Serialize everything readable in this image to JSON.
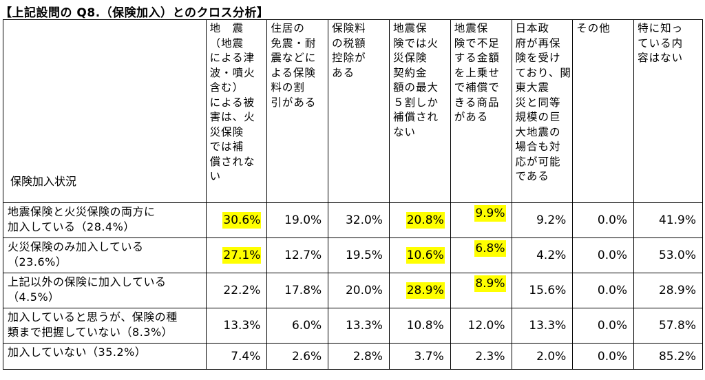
{
  "title": "【上記設問の Q8.（保険加入）とのクロス分析】",
  "corner_label": "保険加入状況",
  "columns": [
    [
      "地　震",
      "（地震",
      "による津",
      "波・噴火",
      "含む）",
      "による被",
      "害は、火",
      "災保険",
      "では補",
      "償されな",
      "い"
    ],
    [
      "住居の",
      "免震・耐",
      "震などに",
      "よる保険",
      "料の割",
      "引がある"
    ],
    [
      "保険料",
      "の税額",
      "控除が",
      "ある"
    ],
    [
      "地震保",
      "険では火",
      "災保険",
      "契約金",
      "額の最大",
      "５割しか",
      "補償され",
      "ない"
    ],
    [
      "地震保",
      "険で不足",
      "する金額",
      "を上乗せ",
      "で補償で",
      "きる商品",
      "がある"
    ],
    [
      "日本政",
      "府が再保",
      "険を受け",
      "ており、関",
      "東大震",
      "災と同等",
      "規模の巨",
      "大地震の",
      "場合も対",
      "応が可能",
      "である"
    ],
    [
      "その他"
    ],
    [
      "特に知っ",
      "ている内",
      "容はない"
    ]
  ],
  "rows": [
    {
      "label": [
        "地震保険と火災保険の両方に",
        "加入している（28.4%）"
      ],
      "values": [
        "30.6%",
        "19.0%",
        "32.0%",
        "20.8%",
        "9.9%",
        "9.2%",
        "0.0%",
        "41.9%"
      ],
      "highlight": [
        true,
        false,
        false,
        true,
        true,
        false,
        false,
        false
      ]
    },
    {
      "label": [
        "火災保険のみ加入している",
        "（23.6%）"
      ],
      "values": [
        "27.1%",
        "12.7%",
        "19.5%",
        "10.6%",
        "6.8%",
        "4.2%",
        "0.0%",
        "53.0%"
      ],
      "highlight": [
        true,
        false,
        false,
        true,
        true,
        false,
        false,
        false
      ]
    },
    {
      "label": [
        "上記以外の保険に加入している",
        "（4.5%）"
      ],
      "values": [
        "22.2%",
        "17.8%",
        "20.0%",
        "28.9%",
        "8.9%",
        "15.6%",
        "0.0%",
        "28.9%"
      ],
      "highlight": [
        false,
        false,
        false,
        true,
        true,
        false,
        false,
        false
      ]
    },
    {
      "label": [
        "加入していると思うが、保険の種",
        "類まで把握していない（8.3%）"
      ],
      "values": [
        "13.3%",
        "6.0%",
        "13.3%",
        "10.8%",
        "12.0%",
        "13.3%",
        "0.0%",
        "57.8%"
      ],
      "highlight": [
        false,
        false,
        false,
        false,
        false,
        false,
        false,
        false
      ]
    },
    {
      "label": [
        "加入していない（35.2%）"
      ],
      "values": [
        "7.4%",
        "2.6%",
        "2.8%",
        "3.7%",
        "2.3%",
        "2.0%",
        "0.0%",
        "85.2%"
      ],
      "highlight": [
        false,
        false,
        false,
        false,
        false,
        false,
        false,
        false
      ]
    }
  ],
  "colors": {
    "highlight": "#ffff00",
    "border": "#000000"
  }
}
